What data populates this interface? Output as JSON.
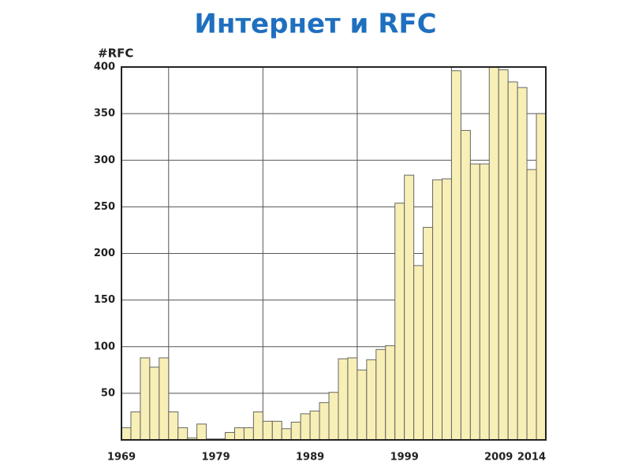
{
  "chart_data": {
    "type": "bar",
    "title": "Интернет и RFC",
    "y_label": "#RFC",
    "x": [
      1969,
      1970,
      1971,
      1972,
      1973,
      1974,
      1975,
      1976,
      1977,
      1978,
      1979,
      1980,
      1981,
      1982,
      1983,
      1984,
      1985,
      1986,
      1987,
      1988,
      1989,
      1990,
      1991,
      1992,
      1993,
      1994,
      1995,
      1996,
      1997,
      1998,
      1999,
      2000,
      2001,
      2002,
      2003,
      2004,
      2005,
      2006,
      2007,
      2008,
      2009,
      2010,
      2011,
      2012,
      2013
    ],
    "values": [
      13,
      30,
      88,
      78,
      88,
      30,
      13,
      2,
      17,
      1,
      1,
      8,
      13,
      13,
      30,
      20,
      20,
      12,
      19,
      28,
      31,
      40,
      51,
      87,
      88,
      75,
      86,
      97,
      101,
      254,
      284,
      187,
      228,
      279,
      280,
      396,
      332,
      296,
      296,
      400,
      397,
      384,
      378,
      290,
      350
    ],
    "color": "#f7efb5",
    "xlim": [
      1969,
      2014
    ],
    "xticks": [
      1969,
      1979,
      1989,
      1999,
      2009,
      2014
    ],
    "ylim": [
      0,
      400
    ],
    "yticks": [
      50,
      100,
      150,
      200,
      250,
      300,
      350,
      400
    ],
    "grid": true
  }
}
